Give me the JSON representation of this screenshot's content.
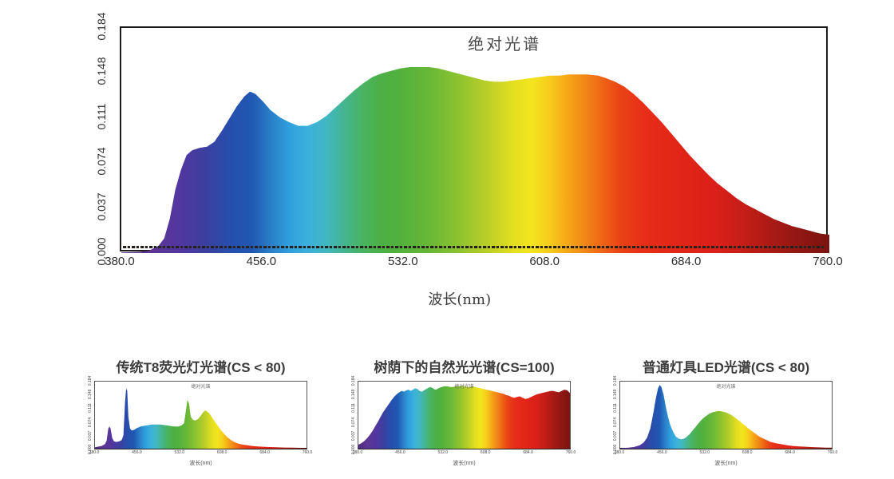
{
  "page": {
    "background": "#ffffff",
    "frame_color": "#1c1c1c",
    "text_color": "#3d3d3d"
  },
  "spectrum_gradient": [
    {
      "wavelength": 380,
      "color": "#4d2a80"
    },
    {
      "wavelength": 395,
      "color": "#5c3591"
    },
    {
      "wavelength": 410,
      "color": "#5436a0"
    },
    {
      "wavelength": 425,
      "color": "#3b3f9f"
    },
    {
      "wavelength": 440,
      "color": "#2450ae"
    },
    {
      "wavelength": 450,
      "color": "#2057b2"
    },
    {
      "wavelength": 460,
      "color": "#2a7ec7"
    },
    {
      "wavelength": 470,
      "color": "#2f9fdd"
    },
    {
      "wavelength": 480,
      "color": "#3bb0dc"
    },
    {
      "wavelength": 490,
      "color": "#41b7c2"
    },
    {
      "wavelength": 500,
      "color": "#45b48e"
    },
    {
      "wavelength": 510,
      "color": "#49b35f"
    },
    {
      "wavelength": 520,
      "color": "#4db044"
    },
    {
      "wavelength": 530,
      "color": "#52b13c"
    },
    {
      "wavelength": 545,
      "color": "#68b737"
    },
    {
      "wavelength": 560,
      "color": "#8ac230"
    },
    {
      "wavelength": 575,
      "color": "#b6cd28"
    },
    {
      "wavelength": 590,
      "color": "#e3de20"
    },
    {
      "wavelength": 600,
      "color": "#f2e51e"
    },
    {
      "wavelength": 610,
      "color": "#f7cb1b"
    },
    {
      "wavelength": 620,
      "color": "#f5a517"
    },
    {
      "wavelength": 628,
      "color": "#f28a17"
    },
    {
      "wavelength": 638,
      "color": "#ef6516"
    },
    {
      "wavelength": 648,
      "color": "#ea4316"
    },
    {
      "wavelength": 660,
      "color": "#e62e18"
    },
    {
      "wavelength": 680,
      "color": "#e12517"
    },
    {
      "wavelength": 700,
      "color": "#d92019"
    },
    {
      "wavelength": 715,
      "color": "#c41d17"
    },
    {
      "wavelength": 730,
      "color": "#a81a15"
    },
    {
      "wavelength": 745,
      "color": "#8f1713"
    },
    {
      "wavelength": 760,
      "color": "#7a1412"
    }
  ],
  "chart_data": [
    {
      "id": "main",
      "type": "area",
      "title": "绝对光谱",
      "xlabel": "波长(nm)",
      "xlim": [
        380,
        760
      ],
      "ylim": [
        0,
        0.184
      ],
      "x_ticks": [
        "380.0",
        "456.0",
        "532.0",
        "608.0",
        "684.0",
        "760.0"
      ],
      "y_ticks": [
        "0.184",
        "0.148",
        "0.111",
        "0.074",
        "0.037",
        "0.000"
      ],
      "points": [
        [
          380,
          0.0005
        ],
        [
          390,
          0.001
        ],
        [
          395,
          0.002
        ],
        [
          400,
          0.006
        ],
        [
          403,
          0.012
        ],
        [
          406,
          0.028
        ],
        [
          409,
          0.052
        ],
        [
          412,
          0.068
        ],
        [
          415,
          0.08
        ],
        [
          418,
          0.084
        ],
        [
          422,
          0.086
        ],
        [
          426,
          0.087
        ],
        [
          430,
          0.091
        ],
        [
          434,
          0.1
        ],
        [
          438,
          0.11
        ],
        [
          442,
          0.12
        ],
        [
          446,
          0.128
        ],
        [
          449,
          0.132
        ],
        [
          452,
          0.13
        ],
        [
          456,
          0.124
        ],
        [
          460,
          0.117
        ],
        [
          465,
          0.111
        ],
        [
          470,
          0.107
        ],
        [
          475,
          0.104
        ],
        [
          480,
          0.104
        ],
        [
          485,
          0.107
        ],
        [
          490,
          0.112
        ],
        [
          495,
          0.119
        ],
        [
          500,
          0.126
        ],
        [
          505,
          0.133
        ],
        [
          510,
          0.139
        ],
        [
          515,
          0.144
        ],
        [
          520,
          0.147
        ],
        [
          525,
          0.149
        ],
        [
          530,
          0.151
        ],
        [
          535,
          0.152
        ],
        [
          540,
          0.152
        ],
        [
          545,
          0.152
        ],
        [
          550,
          0.151
        ],
        [
          555,
          0.149
        ],
        [
          560,
          0.147
        ],
        [
          565,
          0.145
        ],
        [
          570,
          0.143
        ],
        [
          575,
          0.141
        ],
        [
          580,
          0.14
        ],
        [
          585,
          0.14
        ],
        [
          590,
          0.141
        ],
        [
          595,
          0.142
        ],
        [
          600,
          0.143
        ],
        [
          605,
          0.144
        ],
        [
          610,
          0.145
        ],
        [
          615,
          0.145
        ],
        [
          620,
          0.146
        ],
        [
          625,
          0.146
        ],
        [
          630,
          0.146
        ],
        [
          636,
          0.145
        ],
        [
          640,
          0.143
        ],
        [
          645,
          0.14
        ],
        [
          650,
          0.136
        ],
        [
          655,
          0.13
        ],
        [
          660,
          0.123
        ],
        [
          665,
          0.115
        ],
        [
          670,
          0.107
        ],
        [
          675,
          0.098
        ],
        [
          680,
          0.089
        ],
        [
          685,
          0.08
        ],
        [
          690,
          0.072
        ],
        [
          695,
          0.064
        ],
        [
          700,
          0.057
        ],
        [
          705,
          0.051
        ],
        [
          710,
          0.045
        ],
        [
          715,
          0.04
        ],
        [
          720,
          0.036
        ],
        [
          725,
          0.032
        ],
        [
          730,
          0.028
        ],
        [
          735,
          0.025
        ],
        [
          740,
          0.022
        ],
        [
          745,
          0.02
        ],
        [
          750,
          0.018
        ],
        [
          755,
          0.016
        ],
        [
          760,
          0.015
        ]
      ]
    },
    {
      "id": "t8",
      "type": "area",
      "panel_title": "传统T8荧光灯光谱(CS < 80)",
      "inner_title": "绝对光谱",
      "xlabel": "波长(nm)",
      "xlim": [
        380,
        760
      ],
      "ylim": [
        0,
        1
      ],
      "x_ticks": [
        "380.0",
        "456.0",
        "532.0",
        "608.0",
        "684.0",
        "760.0"
      ],
      "y_ticks": [
        "0.184",
        "0.148",
        "0.111",
        "0.074",
        "0.037",
        "0.000"
      ],
      "points": [
        [
          380,
          0.02
        ],
        [
          392,
          0.04
        ],
        [
          398,
          0.07
        ],
        [
          401,
          0.12
        ],
        [
          404,
          0.3
        ],
        [
          406,
          0.33
        ],
        [
          408,
          0.3
        ],
        [
          411,
          0.16
        ],
        [
          414,
          0.11
        ],
        [
          418,
          0.1
        ],
        [
          424,
          0.11
        ],
        [
          428,
          0.13
        ],
        [
          431,
          0.2
        ],
        [
          434,
          0.7
        ],
        [
          436,
          0.9
        ],
        [
          438,
          0.86
        ],
        [
          440,
          0.48
        ],
        [
          443,
          0.3
        ],
        [
          446,
          0.27
        ],
        [
          450,
          0.28
        ],
        [
          456,
          0.31
        ],
        [
          462,
          0.33
        ],
        [
          468,
          0.34
        ],
        [
          475,
          0.35
        ],
        [
          482,
          0.36
        ],
        [
          490,
          0.36
        ],
        [
          498,
          0.36
        ],
        [
          506,
          0.35
        ],
        [
          514,
          0.34
        ],
        [
          522,
          0.33
        ],
        [
          530,
          0.33
        ],
        [
          536,
          0.35
        ],
        [
          540,
          0.38
        ],
        [
          543,
          0.55
        ],
        [
          546,
          0.73
        ],
        [
          549,
          0.67
        ],
        [
          552,
          0.48
        ],
        [
          556,
          0.43
        ],
        [
          560,
          0.42
        ],
        [
          565,
          0.44
        ],
        [
          570,
          0.49
        ],
        [
          574,
          0.54
        ],
        [
          578,
          0.57
        ],
        [
          582,
          0.55
        ],
        [
          586,
          0.52
        ],
        [
          590,
          0.47
        ],
        [
          595,
          0.41
        ],
        [
          600,
          0.35
        ],
        [
          606,
          0.28
        ],
        [
          612,
          0.22
        ],
        [
          618,
          0.17
        ],
        [
          624,
          0.13
        ],
        [
          630,
          0.1
        ],
        [
          638,
          0.075
        ],
        [
          646,
          0.06
        ],
        [
          654,
          0.05
        ],
        [
          662,
          0.04
        ],
        [
          672,
          0.033
        ],
        [
          682,
          0.028
        ],
        [
          694,
          0.024
        ],
        [
          706,
          0.02
        ],
        [
          720,
          0.017
        ],
        [
          735,
          0.014
        ],
        [
          760,
          0.01
        ]
      ]
    },
    {
      "id": "natural",
      "type": "area",
      "panel_title": "树荫下的自然光光谱(CS=100)",
      "inner_title": "绝对光谱",
      "xlabel": "波长(nm)",
      "xlim": [
        380,
        760
      ],
      "ylim": [
        0,
        1
      ],
      "x_ticks": [
        "380.0",
        "456.0",
        "532.0",
        "608.0",
        "684.0",
        "760.0"
      ],
      "y_ticks": [
        "0.184",
        "0.148",
        "0.111",
        "0.074",
        "0.037",
        "0.000"
      ],
      "points": [
        [
          380,
          0.06
        ],
        [
          385,
          0.08
        ],
        [
          390,
          0.11
        ],
        [
          395,
          0.15
        ],
        [
          400,
          0.2
        ],
        [
          405,
          0.26
        ],
        [
          410,
          0.33
        ],
        [
          415,
          0.4
        ],
        [
          420,
          0.48
        ],
        [
          425,
          0.55
        ],
        [
          430,
          0.61
        ],
        [
          435,
          0.67
        ],
        [
          440,
          0.73
        ],
        [
          445,
          0.78
        ],
        [
          450,
          0.82
        ],
        [
          455,
          0.85
        ],
        [
          458,
          0.86
        ],
        [
          462,
          0.85
        ],
        [
          466,
          0.87
        ],
        [
          470,
          0.88
        ],
        [
          474,
          0.86
        ],
        [
          478,
          0.88
        ],
        [
          482,
          0.9
        ],
        [
          486,
          0.89
        ],
        [
          490,
          0.86
        ],
        [
          494,
          0.85
        ],
        [
          498,
          0.87
        ],
        [
          502,
          0.89
        ],
        [
          506,
          0.91
        ],
        [
          510,
          0.92
        ],
        [
          514,
          0.9
        ],
        [
          518,
          0.88
        ],
        [
          522,
          0.89
        ],
        [
          526,
          0.91
        ],
        [
          530,
          0.92
        ],
        [
          535,
          0.93
        ],
        [
          540,
          0.93
        ],
        [
          545,
          0.92
        ],
        [
          550,
          0.92
        ],
        [
          555,
          0.93
        ],
        [
          560,
          0.93
        ],
        [
          565,
          0.94
        ],
        [
          570,
          0.93
        ],
        [
          575,
          0.92
        ],
        [
          580,
          0.92
        ],
        [
          585,
          0.93
        ],
        [
          590,
          0.92
        ],
        [
          595,
          0.91
        ],
        [
          600,
          0.9
        ],
        [
          605,
          0.89
        ],
        [
          610,
          0.88
        ],
        [
          615,
          0.87
        ],
        [
          620,
          0.86
        ],
        [
          625,
          0.85
        ],
        [
          630,
          0.84
        ],
        [
          635,
          0.83
        ],
        [
          640,
          0.82
        ],
        [
          645,
          0.8
        ],
        [
          650,
          0.79
        ],
        [
          655,
          0.77
        ],
        [
          660,
          0.76
        ],
        [
          665,
          0.77
        ],
        [
          670,
          0.78
        ],
        [
          675,
          0.76
        ],
        [
          680,
          0.74
        ],
        [
          685,
          0.75
        ],
        [
          690,
          0.77
        ],
        [
          695,
          0.79
        ],
        [
          700,
          0.81
        ],
        [
          705,
          0.82
        ],
        [
          710,
          0.83
        ],
        [
          715,
          0.84
        ],
        [
          720,
          0.85
        ],
        [
          725,
          0.86
        ],
        [
          730,
          0.86
        ],
        [
          735,
          0.85
        ],
        [
          740,
          0.84
        ],
        [
          745,
          0.86
        ],
        [
          750,
          0.88
        ],
        [
          755,
          0.87
        ],
        [
          760,
          0.83
        ]
      ]
    },
    {
      "id": "led",
      "type": "area",
      "panel_title": "普通灯具LED光谱(CS < 80)",
      "inner_title": "绝对光谱",
      "xlabel": "波长(nm)",
      "xlim": [
        380,
        760
      ],
      "ylim": [
        0,
        1
      ],
      "x_ticks": [
        "380.0",
        "456.0",
        "532.0",
        "608.0",
        "684.0",
        "760.0"
      ],
      "y_ticks": [
        "0.184",
        "0.148",
        "0.111",
        "0.074",
        "0.037",
        "0.000"
      ],
      "points": [
        [
          380,
          0.01
        ],
        [
          395,
          0.015
        ],
        [
          405,
          0.025
        ],
        [
          415,
          0.05
        ],
        [
          422,
          0.09
        ],
        [
          428,
          0.16
        ],
        [
          434,
          0.3
        ],
        [
          440,
          0.55
        ],
        [
          444,
          0.75
        ],
        [
          448,
          0.9
        ],
        [
          451,
          0.95
        ],
        [
          454,
          0.92
        ],
        [
          458,
          0.8
        ],
        [
          462,
          0.62
        ],
        [
          466,
          0.47
        ],
        [
          470,
          0.35
        ],
        [
          475,
          0.25
        ],
        [
          480,
          0.18
        ],
        [
          485,
          0.15
        ],
        [
          490,
          0.14
        ],
        [
          495,
          0.15
        ],
        [
          500,
          0.18
        ],
        [
          505,
          0.22
        ],
        [
          510,
          0.27
        ],
        [
          515,
          0.32
        ],
        [
          520,
          0.37
        ],
        [
          525,
          0.42
        ],
        [
          530,
          0.46
        ],
        [
          535,
          0.49
        ],
        [
          540,
          0.52
        ],
        [
          545,
          0.54
        ],
        [
          550,
          0.55
        ],
        [
          555,
          0.56
        ],
        [
          560,
          0.56
        ],
        [
          565,
          0.55
        ],
        [
          570,
          0.54
        ],
        [
          575,
          0.52
        ],
        [
          580,
          0.5
        ],
        [
          585,
          0.47
        ],
        [
          590,
          0.44
        ],
        [
          595,
          0.41
        ],
        [
          600,
          0.37
        ],
        [
          605,
          0.34
        ],
        [
          610,
          0.3
        ],
        [
          615,
          0.27
        ],
        [
          620,
          0.24
        ],
        [
          625,
          0.21
        ],
        [
          630,
          0.18
        ],
        [
          635,
          0.16
        ],
        [
          640,
          0.14
        ],
        [
          645,
          0.12
        ],
        [
          650,
          0.1
        ],
        [
          655,
          0.09
        ],
        [
          660,
          0.08
        ],
        [
          670,
          0.065
        ],
        [
          680,
          0.05
        ],
        [
          690,
          0.04
        ],
        [
          700,
          0.035
        ],
        [
          710,
          0.03
        ],
        [
          720,
          0.025
        ],
        [
          730,
          0.02
        ],
        [
          740,
          0.018
        ],
        [
          750,
          0.016
        ],
        [
          760,
          0.014
        ]
      ]
    }
  ]
}
